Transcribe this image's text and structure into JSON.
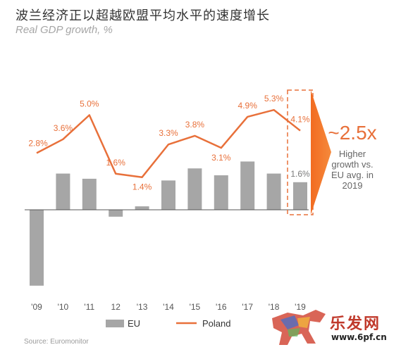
{
  "header": {
    "title": "波兰经济正以超越欧盟平均水平的速度增长",
    "subtitle": "Real GDP growth, %"
  },
  "chart_data": {
    "type": "bar+line",
    "categories": [
      "'09",
      "'10",
      "'11",
      "12",
      "'13",
      "'14",
      "'15",
      "'16",
      "'17",
      "'18",
      "'19"
    ],
    "series": [
      {
        "name": "EU",
        "type": "bar",
        "color": "#a6a6a6",
        "values": [
          -4.4,
          2.1,
          1.8,
          -0.4,
          0.2,
          1.7,
          2.4,
          2.0,
          2.8,
          2.1,
          1.6
        ]
      },
      {
        "name": "Poland",
        "type": "line",
        "color": "#e8703a",
        "values": [
          2.8,
          3.6,
          5.0,
          1.6,
          1.4,
          3.3,
          3.8,
          3.1,
          4.9,
          5.3,
          4.1
        ]
      }
    ],
    "line_labels": [
      "2.8%",
      "3.6%",
      "5.0%",
      "1.6%",
      "1.4%",
      "3.3%",
      "3.8%",
      "3.1%",
      "4.9%",
      "5.3%",
      "4.1%"
    ],
    "bar_labels": [
      {
        "index": 10,
        "text": "1.6%"
      }
    ],
    "highlight": {
      "index": 10,
      "style": "dashed-box"
    },
    "callout": {
      "headline": "~2.5x",
      "lines": [
        "Higher",
        "growth vs.",
        "EU avg. in",
        "2019"
      ]
    },
    "ylim": [
      -5,
      6.5
    ],
    "grid": false,
    "legend_position": "bottom-center"
  },
  "footer": {
    "source": "Source: Euromonitor"
  },
  "watermark": {
    "text": "乐发网",
    "url": "www.6pf.cn"
  },
  "colors": {
    "accent": "#e8703a",
    "bar": "#a6a6a6",
    "axis_text": "#555555",
    "callout_text": "#666666"
  }
}
